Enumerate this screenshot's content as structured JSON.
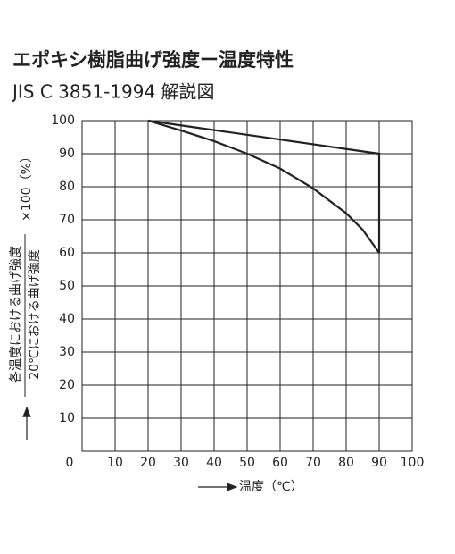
{
  "chart_data": {
    "type": "line",
    "title": "エポキシ樹脂曲げ強度ー温度特性",
    "subtitle": "JIS C 3851-1994 解説図",
    "xlabel": "温度（℃）",
    "ylabel": {
      "numerator": "各温度における曲げ強度",
      "denominator": "20℃における曲げ強度",
      "suffix": "×100（%）"
    },
    "series": [
      {
        "x": [
          20,
          90,
          90
        ],
        "values": [
          100,
          90,
          60
        ],
        "color": "#222222"
      },
      {
        "x": [
          20,
          30,
          40,
          50,
          60,
          70,
          80,
          85,
          90
        ],
        "values": [
          100,
          97,
          93.8,
          90,
          85.5,
          79.5,
          72,
          67,
          60
        ],
        "color": "#222222"
      }
    ],
    "xlim": [
      0,
      100
    ],
    "xticks": [
      0,
      10,
      20,
      30,
      40,
      50,
      60,
      70,
      80,
      90,
      100
    ],
    "ylim": [
      0,
      100
    ],
    "yticks": [
      10,
      20,
      30,
      40,
      50,
      60,
      70,
      80,
      90,
      100
    ],
    "grid": true
  }
}
